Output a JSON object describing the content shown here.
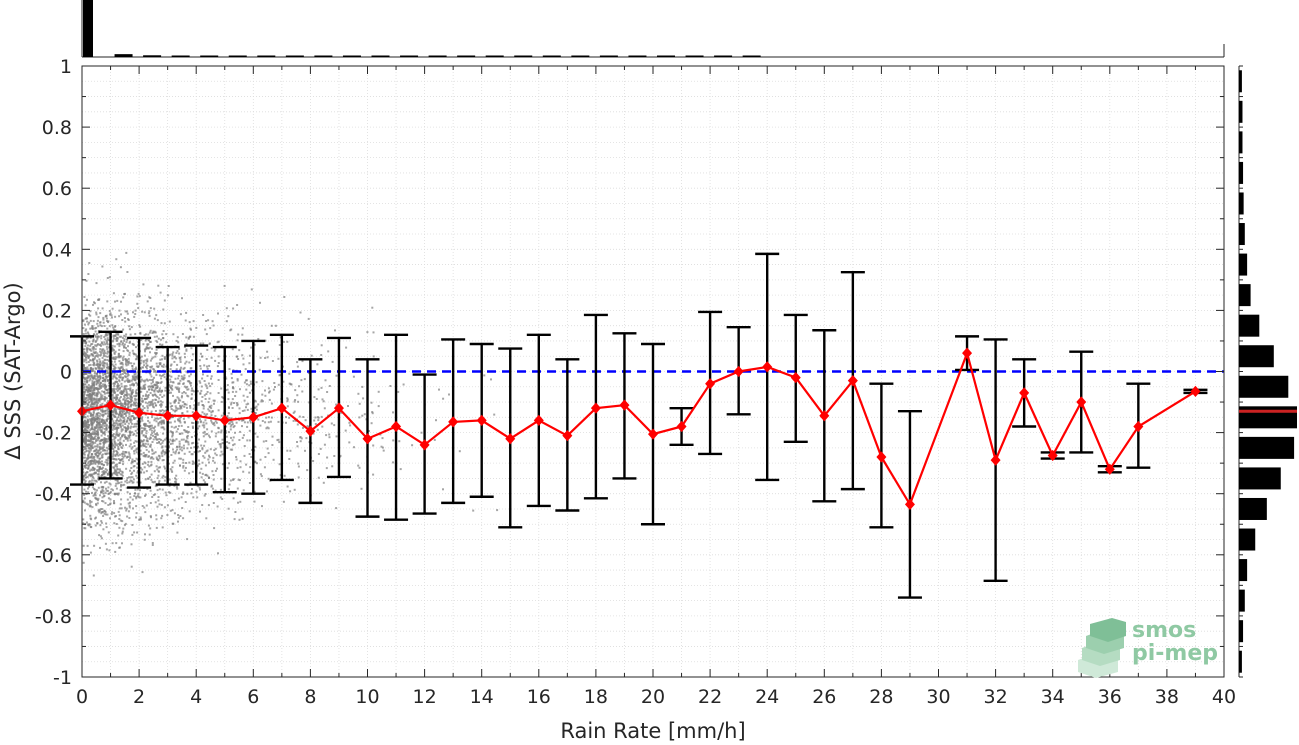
{
  "chart_data": {
    "type": "scatter",
    "xlabel": "Rain Rate [mm/h]",
    "ylabel": "Δ SSS (SAT-Argo)",
    "xlim": [
      0,
      40
    ],
    "ylim": [
      -1,
      1
    ],
    "xticks": [
      0,
      2,
      4,
      6,
      8,
      10,
      12,
      14,
      16,
      18,
      20,
      22,
      24,
      26,
      28,
      30,
      32,
      34,
      36,
      38,
      40
    ],
    "yticks": [
      -1,
      -0.8,
      -0.6,
      -0.4,
      -0.2,
      0,
      0.2,
      0.4,
      0.6,
      0.8,
      1
    ],
    "grid": true,
    "reference_line": {
      "y": 0,
      "style": "dashed",
      "color": "#0000ff"
    },
    "binned_series": {
      "color": "#ff0000",
      "errorbar_color": "#000000",
      "x": [
        0,
        1,
        2,
        3,
        4,
        5,
        6,
        7,
        8,
        9,
        10,
        11,
        12,
        13,
        14,
        15,
        16,
        17,
        18,
        19,
        20,
        21,
        22,
        23,
        24,
        25,
        26,
        27,
        28,
        29,
        31,
        32,
        33,
        34,
        35,
        36,
        37,
        39
      ],
      "mean": [
        -0.13,
        -0.11,
        -0.135,
        -0.145,
        -0.145,
        -0.16,
        -0.15,
        -0.12,
        -0.195,
        -0.12,
        -0.22,
        -0.18,
        -0.24,
        -0.165,
        -0.16,
        -0.22,
        -0.16,
        -0.21,
        -0.12,
        -0.11,
        -0.205,
        -0.18,
        -0.04,
        0.0,
        0.015,
        -0.02,
        -0.145,
        -0.03,
        -0.28,
        -0.435,
        0.06,
        -0.29,
        -0.07,
        -0.275,
        -0.1,
        -0.32,
        -0.18,
        -0.065
      ],
      "upper": [
        0.115,
        0.13,
        0.11,
        0.08,
        0.085,
        0.08,
        0.1,
        0.12,
        0.04,
        0.11,
        0.04,
        0.12,
        -0.01,
        0.105,
        0.09,
        0.075,
        0.12,
        0.04,
        0.185,
        0.125,
        0.09,
        -0.12,
        0.195,
        0.145,
        0.385,
        0.185,
        0.135,
        0.325,
        -0.04,
        -0.13,
        0.115,
        0.105,
        0.04,
        -0.265,
        0.065,
        -0.31,
        -0.04,
        -0.06
      ],
      "lower": [
        -0.37,
        -0.35,
        -0.38,
        -0.37,
        -0.37,
        -0.395,
        -0.4,
        -0.355,
        -0.43,
        -0.345,
        -0.475,
        -0.485,
        -0.465,
        -0.43,
        -0.41,
        -0.51,
        -0.44,
        -0.455,
        -0.415,
        -0.35,
        -0.5,
        -0.24,
        -0.27,
        -0.14,
        -0.355,
        -0.23,
        -0.425,
        -0.385,
        -0.51,
        -0.74,
        0.005,
        -0.685,
        -0.18,
        -0.285,
        -0.265,
        -0.33,
        -0.315,
        -0.07
      ]
    },
    "scatter_cloud": {
      "color": "#808080",
      "description_note": ""
    },
    "top_histogram": {
      "bin_edges_x": [
        0,
        1,
        2,
        3,
        4,
        5,
        6,
        7,
        8,
        9,
        10,
        11,
        12,
        13,
        14,
        15,
        16,
        17,
        18,
        19,
        20,
        21,
        22,
        23,
        24
      ],
      "relative_counts": [
        1.0,
        0.05,
        0.03,
        0.02,
        0.015,
        0.012,
        0.01,
        0.009,
        0.008,
        0.007,
        0.006,
        0.005,
        0.005,
        0.004,
        0.004,
        0.003,
        0.003,
        0.003,
        0.002,
        0.002,
        0.002,
        0.002,
        0.001,
        0.001
      ]
    },
    "right_histogram": {
      "bin_centers_y": [
        0.95,
        0.85,
        0.75,
        0.65,
        0.55,
        0.45,
        0.35,
        0.25,
        0.15,
        0.05,
        -0.05,
        -0.15,
        -0.25,
        -0.35,
        -0.45,
        -0.55,
        -0.65,
        -0.75,
        -0.85,
        -0.95
      ],
      "relative_counts": [
        0.05,
        0.06,
        0.06,
        0.07,
        0.08,
        0.1,
        0.14,
        0.2,
        0.35,
        0.6,
        0.85,
        1.0,
        0.95,
        0.72,
        0.48,
        0.28,
        0.14,
        0.1,
        0.07,
        0.05
      ],
      "mean_line_y": -0.13,
      "mean_line_color": "#cc2222"
    }
  },
  "logo": {
    "line1": "smos",
    "line2": "pi-mep"
  }
}
